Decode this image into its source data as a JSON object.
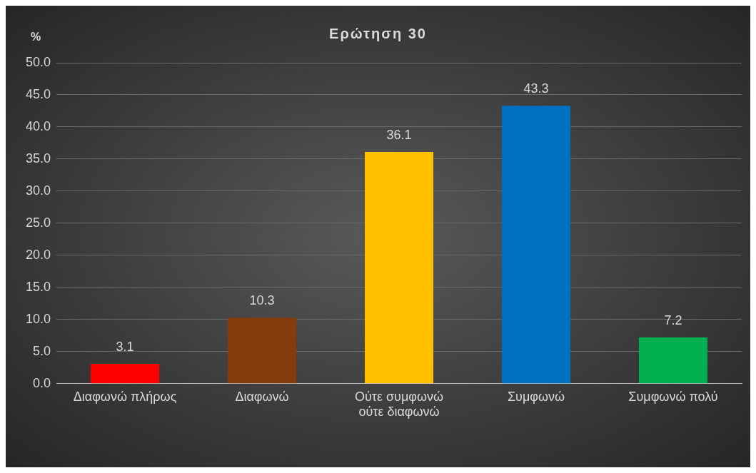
{
  "chart_data": {
    "type": "bar",
    "title": "Ερώτηση 30",
    "ylabel": "%",
    "categories": [
      "Διαφωνώ πλήρως",
      "Διαφωνώ",
      "Ούτε συμφωνώ ούτε διαφωνώ",
      "Συμφωνώ",
      "Συμφωνώ πολύ"
    ],
    "values": [
      3.1,
      10.3,
      36.1,
      43.3,
      7.2
    ],
    "colors": [
      "#ff0000",
      "#843c0c",
      "#ffc000",
      "#0070c0",
      "#00b050"
    ],
    "ylim": [
      0,
      50
    ],
    "yticks": [
      {
        "value": 0,
        "label": "0.0"
      },
      {
        "value": 5,
        "label": "5.0"
      },
      {
        "value": 10,
        "label": "10.0"
      },
      {
        "value": 15,
        "label": "15.0"
      },
      {
        "value": 20,
        "label": "20.0"
      },
      {
        "value": 25,
        "label": "25.0"
      },
      {
        "value": 30,
        "label": "30.0"
      },
      {
        "value": 35,
        "label": "35.0"
      },
      {
        "value": 40,
        "label": "40.0"
      },
      {
        "value": 45,
        "label": "45.0"
      },
      {
        "value": 50,
        "label": "50.0"
      }
    ],
    "grid": "y",
    "data_labels": true,
    "legend": false
  }
}
